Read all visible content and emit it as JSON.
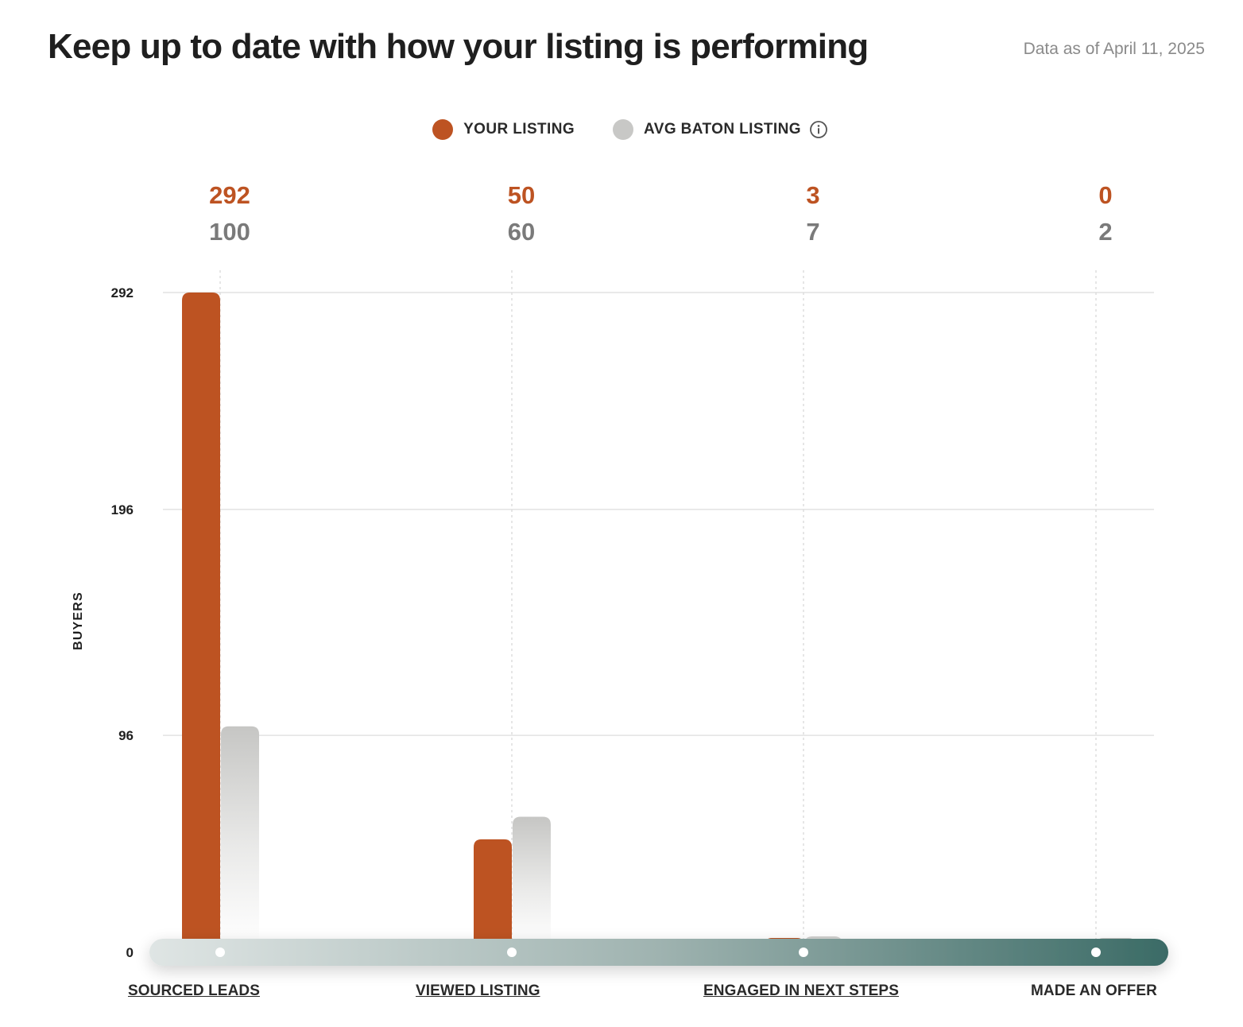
{
  "header": {
    "title": "Keep up to date with how your listing is performing",
    "as_of": "Data as of April 11, 2025"
  },
  "legend": {
    "yours_label": "YOUR LISTING",
    "avg_label": "AVG BATON LISTING",
    "info_icon": "info-icon"
  },
  "colors": {
    "yours": "#bd5322",
    "avg": "#c8c8c6",
    "track_start": "#dfe5e4",
    "track_end": "#3b6b66"
  },
  "chart_data": {
    "type": "bar",
    "ylabel": "BUYERS",
    "yticks": [
      0,
      96,
      196,
      292
    ],
    "ylim": [
      0,
      292
    ],
    "grid": true,
    "legend_position": "top-center",
    "categories": [
      "SOURCED LEADS",
      "VIEWED LISTING",
      "ENGAGED IN NEXT STEPS",
      "MADE AN OFFER"
    ],
    "category_links": [
      true,
      true,
      true,
      false
    ],
    "series": [
      {
        "name": "YOUR LISTING",
        "values": [
          292,
          50,
          3,
          0
        ]
      },
      {
        "name": "AVG BATON LISTING",
        "values": [
          100,
          60,
          7,
          2
        ]
      }
    ],
    "value_labels": {
      "yours": [
        "292",
        "50",
        "3",
        "0"
      ],
      "avg": [
        "100",
        "60",
        "7",
        "2"
      ]
    }
  }
}
